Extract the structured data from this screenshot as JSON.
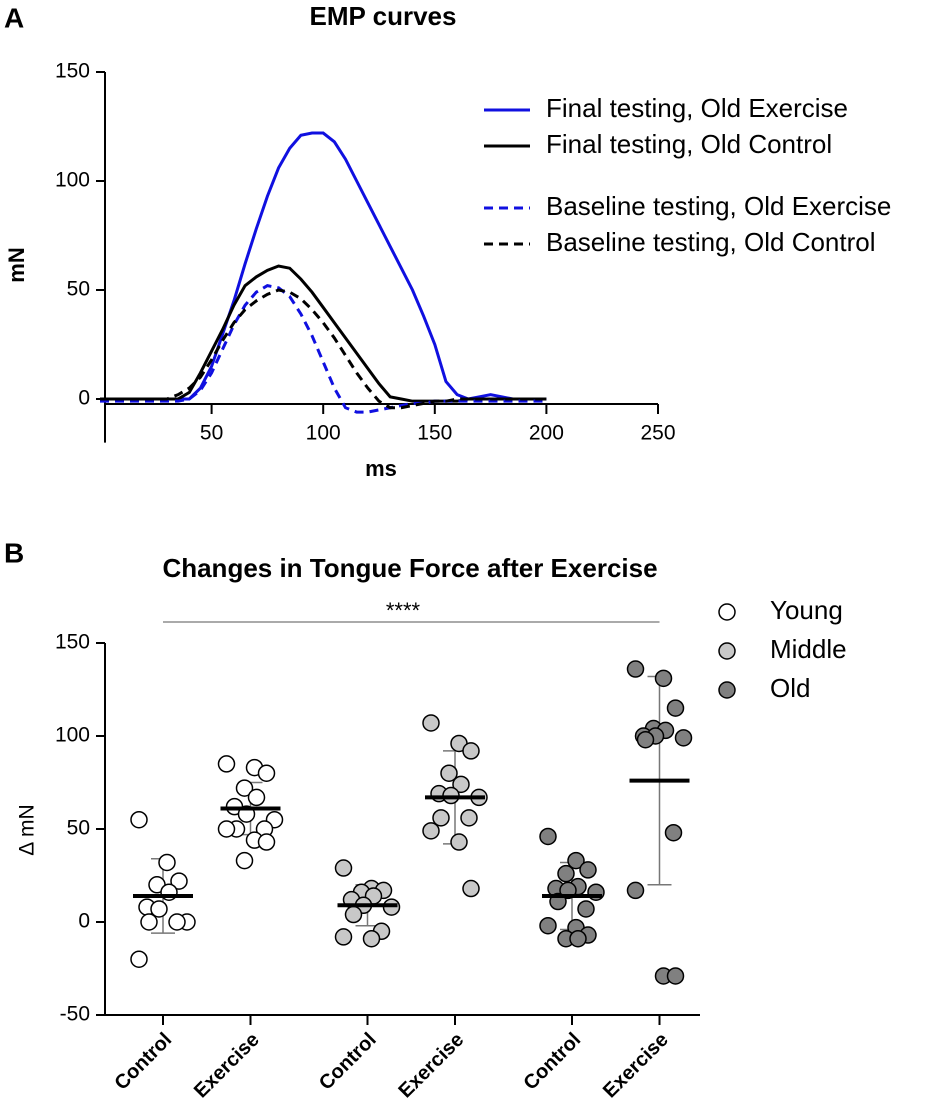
{
  "chart_data": [
    {
      "type": "line",
      "panel_label": "A",
      "title": "EMP curves",
      "xlabel": "ms",
      "ylabel": "mN",
      "x": [
        0,
        5,
        10,
        15,
        20,
        25,
        30,
        35,
        40,
        45,
        50,
        55,
        60,
        65,
        70,
        75,
        80,
        85,
        90,
        95,
        100,
        105,
        110,
        115,
        120,
        125,
        130,
        135,
        140,
        145,
        150,
        155,
        160,
        165,
        170,
        175,
        180,
        185,
        190,
        195,
        200
      ],
      "series": [
        {
          "name": "Final testing, Old Exercise",
          "color": "#1010e0",
          "linestyle": "solid",
          "values": [
            0,
            0,
            0,
            0,
            0,
            0,
            0,
            0,
            0,
            5,
            15,
            30,
            45,
            62,
            78,
            93,
            106,
            115,
            121,
            122,
            122,
            118,
            110,
            100,
            90,
            80,
            70,
            60,
            50,
            38,
            25,
            8,
            2,
            0,
            1,
            2,
            1,
            0,
            0,
            0,
            0
          ]
        },
        {
          "name": "Final testing, Old Control",
          "color": "#000000",
          "linestyle": "solid",
          "values": [
            0,
            0,
            0,
            0,
            0,
            0,
            0,
            0,
            3,
            12,
            22,
            32,
            43,
            52,
            56,
            59,
            61,
            60,
            55,
            49,
            42,
            35,
            28,
            21,
            14,
            7,
            1,
            0,
            -1,
            -1,
            -1,
            -1,
            -1,
            0,
            0,
            0,
            0,
            0,
            0,
            0,
            0
          ]
        },
        {
          "name": "Baseline testing, Old Exercise",
          "color": "#1010e0",
          "linestyle": "dashed",
          "values": [
            -1,
            -1,
            -1,
            -1,
            -1,
            -1,
            -1,
            -1,
            0,
            4,
            12,
            23,
            34,
            43,
            49,
            52,
            51,
            47,
            39,
            29,
            17,
            5,
            -4,
            -6,
            -6,
            -5,
            -4,
            -3,
            -2,
            -2,
            -1,
            -1,
            -1,
            -1,
            -1,
            -1,
            -1,
            -1,
            -1,
            -1,
            -1
          ]
        },
        {
          "name": "Baseline testing, Old Control",
          "color": "#000000",
          "linestyle": "dashed",
          "values": [
            0,
            0,
            0,
            0,
            0,
            0,
            0,
            2,
            5,
            10,
            18,
            27,
            35,
            41,
            45,
            48,
            50,
            49,
            46,
            41,
            35,
            28,
            20,
            12,
            5,
            -1,
            -4,
            -4,
            -3,
            -2,
            -1,
            -1,
            0,
            0,
            0,
            0,
            0,
            0,
            0,
            0,
            0
          ]
        }
      ],
      "xlim": [
        0,
        250
      ],
      "xticks": [
        50,
        100,
        150,
        200,
        250
      ],
      "ylim": [
        -20,
        150
      ],
      "yticks": [
        0,
        50,
        100,
        150
      ]
    },
    {
      "type": "strip",
      "panel_label": "B",
      "title": "Changes in Tongue Force after Exercise",
      "ylabel": "Δ mN",
      "annotation": "****",
      "categories": [
        "Control",
        "Exercise",
        "Control",
        "Exercise",
        "Control",
        "Exercise"
      ],
      "series": [
        {
          "name": "Young",
          "color": "#ffffff",
          "values": [
            [
              55,
              32,
              22,
              20,
              16,
              8,
              7,
              0,
              0,
              0,
              -20
            ],
            [
              85,
              83,
              80,
              72,
              67,
              62,
              58,
              55,
              50,
              50,
              50,
              44,
              43,
              33
            ]
          ],
          "means": [
            14,
            61
          ],
          "sd": [
            20,
            14
          ]
        },
        {
          "name": "Middle",
          "color": "#c8c8c8",
          "values": [
            [
              29,
              18,
              17,
              16,
              14,
              12,
              9,
              8,
              4,
              -5,
              -8,
              -9
            ],
            [
              107,
              96,
              92,
              80,
              74,
              69,
              68,
              67,
              56,
              56,
              49,
              43,
              18
            ]
          ],
          "means": [
            9,
            67
          ],
          "sd": [
            11,
            25
          ]
        },
        {
          "name": "Old",
          "color": "#808080",
          "values": [
            [
              46,
              33,
              28,
              26,
              19,
              18,
              17,
              16,
              11,
              7,
              -2,
              -3,
              -7,
              -9,
              -9
            ],
            [
              136,
              131,
              115,
              104,
              103,
              100,
              100,
              99,
              98,
              48,
              17,
              -29,
              -29
            ]
          ],
          "means": [
            14,
            76
          ],
          "sd": [
            18,
            56
          ]
        }
      ],
      "ylim": [
        -50,
        150
      ],
      "yticks": [
        -50,
        0,
        50,
        100,
        150
      ]
    }
  ]
}
